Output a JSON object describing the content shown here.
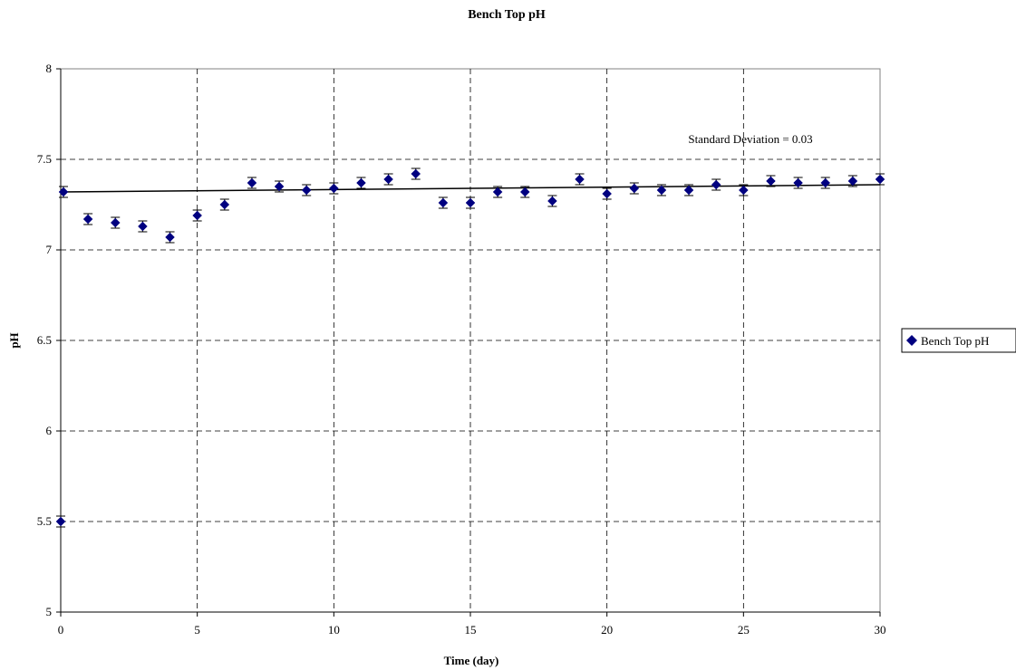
{
  "chart_data": {
    "type": "scatter",
    "title": "Bench Top pH",
    "xlabel": "Time (day)",
    "ylabel": "pH",
    "xlim": [
      0,
      30
    ],
    "ylim": [
      5,
      8
    ],
    "x_ticks": [
      0,
      5,
      10,
      15,
      20,
      25,
      30
    ],
    "y_ticks": [
      5,
      5.5,
      6,
      6.5,
      7,
      7.5,
      8
    ],
    "grid": "dashed vertical and horizontal",
    "legend_position": "right",
    "annotation": "Standard Deviation = 0.03",
    "error_bar": 0.03,
    "series": [
      {
        "name": "Bench Top pH",
        "marker": "diamond",
        "color": "#000080",
        "x": [
          0,
          0.1,
          1,
          2,
          3,
          4,
          5,
          6,
          7,
          8,
          9,
          10,
          11,
          12,
          13,
          14,
          15,
          16,
          17,
          18,
          19,
          20,
          21,
          22,
          23,
          24,
          25,
          26,
          27,
          28,
          29,
          30
        ],
        "y": [
          5.5,
          7.32,
          7.17,
          7.15,
          7.13,
          7.07,
          7.19,
          7.25,
          7.37,
          7.35,
          7.33,
          7.34,
          7.37,
          7.39,
          7.42,
          7.26,
          7.26,
          7.32,
          7.32,
          7.27,
          7.39,
          7.31,
          7.34,
          7.33,
          7.33,
          7.36,
          7.33,
          7.38,
          7.37,
          7.37,
          7.38,
          7.39
        ]
      }
    ],
    "trendline": {
      "type": "linear",
      "x": [
        0,
        30
      ],
      "y": [
        7.32,
        7.36
      ]
    }
  }
}
